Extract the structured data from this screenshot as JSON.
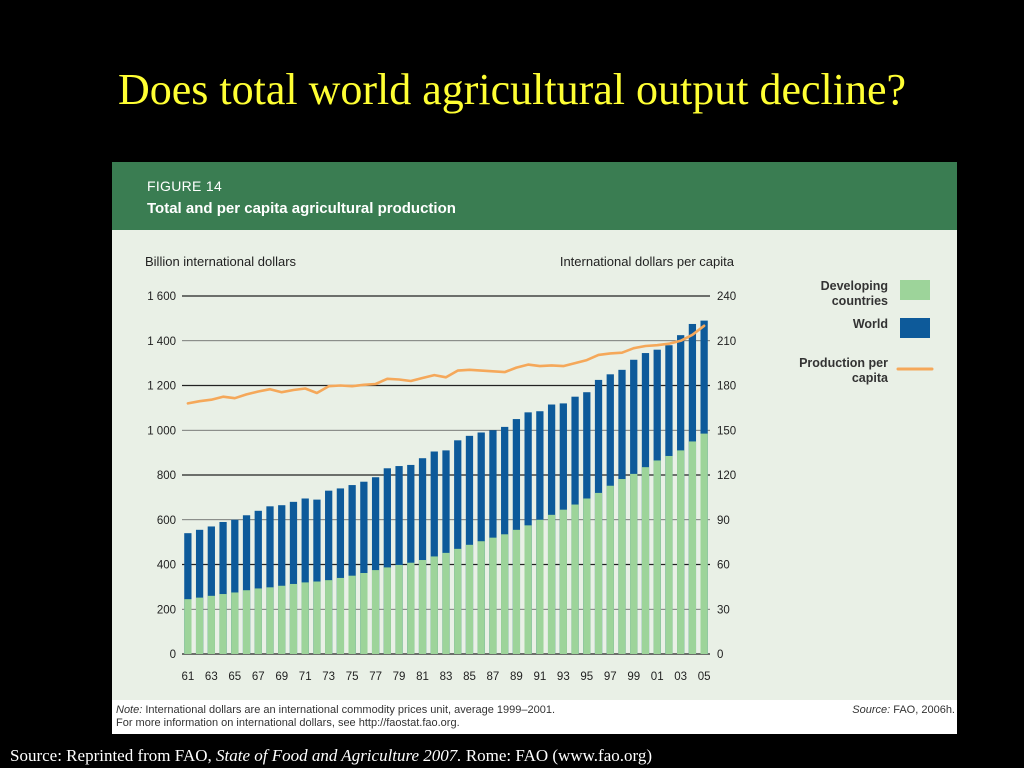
{
  "slide": {
    "title": "Does total world agricultural output decline?",
    "source_prefix": "Source: Reprinted from FAO, ",
    "source_italic": "State of Food and Agriculture 2007.",
    "source_suffix": "  Rome: FAO (www.fao.org)"
  },
  "figure": {
    "number": "FIGURE 14",
    "title": "Total and per capita agricultural production",
    "note_label": "Note:",
    "note_line1": " International dollars are an international commodity prices unit, average 1999–2001.",
    "note_line2": "For more information on international dollars, see http://faostat.fao.org.",
    "source_label": "Source:",
    "source_text": " FAO, 2006h."
  },
  "colors": {
    "header_bg": "#3a7d52",
    "plot_bg": "#e9f0e6",
    "developing": "#9dd49a",
    "world": "#0d5a9a",
    "per_capita": "#f5a85a"
  },
  "chart_data": {
    "type": "bar",
    "left_axis_label": "Billion international dollars",
    "right_axis_label": "International dollars per capita",
    "ylim_left": [
      0,
      1600
    ],
    "ylim_right": [
      0,
      240
    ],
    "left_ticks": [
      "0",
      "200",
      "400",
      "600",
      "800",
      "1 000",
      "1 200",
      "1 400",
      "1 600"
    ],
    "right_ticks": [
      "0",
      "30",
      "60",
      "90",
      "120",
      "150",
      "180",
      "210",
      "240"
    ],
    "x_tick_labels": [
      "61",
      "63",
      "65",
      "67",
      "69",
      "71",
      "73",
      "75",
      "77",
      "79",
      "81",
      "83",
      "85",
      "87",
      "89",
      "91",
      "93",
      "95",
      "97",
      "99",
      "01",
      "03",
      "05"
    ],
    "years": [
      "1961",
      "1962",
      "1963",
      "1964",
      "1965",
      "1966",
      "1967",
      "1968",
      "1969",
      "1970",
      "1971",
      "1972",
      "1973",
      "1974",
      "1975",
      "1976",
      "1977",
      "1978",
      "1979",
      "1980",
      "1981",
      "1982",
      "1983",
      "1984",
      "1985",
      "1986",
      "1987",
      "1988",
      "1989",
      "1990",
      "1991",
      "1992",
      "1993",
      "1994",
      "1995",
      "1996",
      "1997",
      "1998",
      "1999",
      "2000",
      "2001",
      "2002",
      "2003",
      "2004",
      "2005"
    ],
    "legend": {
      "developing": "Developing countries",
      "world": "World",
      "per_capita": "Production per capita"
    },
    "series": [
      {
        "name": "World",
        "axis": "left",
        "style": "bar",
        "values": [
          540,
          555,
          570,
          590,
          600,
          620,
          640,
          660,
          665,
          680,
          695,
          690,
          730,
          740,
          755,
          770,
          790,
          830,
          840,
          845,
          875,
          905,
          910,
          955,
          975,
          990,
          1000,
          1015,
          1050,
          1080,
          1085,
          1115,
          1120,
          1150,
          1170,
          1225,
          1250,
          1270,
          1315,
          1345,
          1360,
          1380,
          1425,
          1475,
          1490
        ]
      },
      {
        "name": "Developing countries",
        "axis": "left",
        "style": "bar",
        "values": [
          245,
          252,
          260,
          268,
          275,
          285,
          293,
          298,
          305,
          313,
          320,
          324,
          330,
          340,
          350,
          362,
          375,
          387,
          398,
          408,
          420,
          436,
          452,
          470,
          488,
          504,
          520,
          535,
          555,
          575,
          600,
          622,
          645,
          668,
          695,
          720,
          752,
          782,
          805,
          835,
          865,
          885,
          910,
          950,
          985
        ]
      },
      {
        "name": "Production per capita",
        "axis": "right",
        "style": "line",
        "values": [
          168,
          169.5,
          170.5,
          172.5,
          171.5,
          174,
          176,
          177.5,
          175.5,
          177,
          178,
          175,
          179.5,
          180,
          179.5,
          180.5,
          181,
          184.5,
          184,
          183,
          185,
          187,
          185.5,
          190,
          190.5,
          190,
          189.5,
          189,
          192,
          194,
          193,
          193.5,
          193,
          195,
          197,
          200.5,
          201.5,
          202,
          205,
          206.5,
          207,
          208,
          210,
          214,
          220
        ]
      }
    ]
  }
}
